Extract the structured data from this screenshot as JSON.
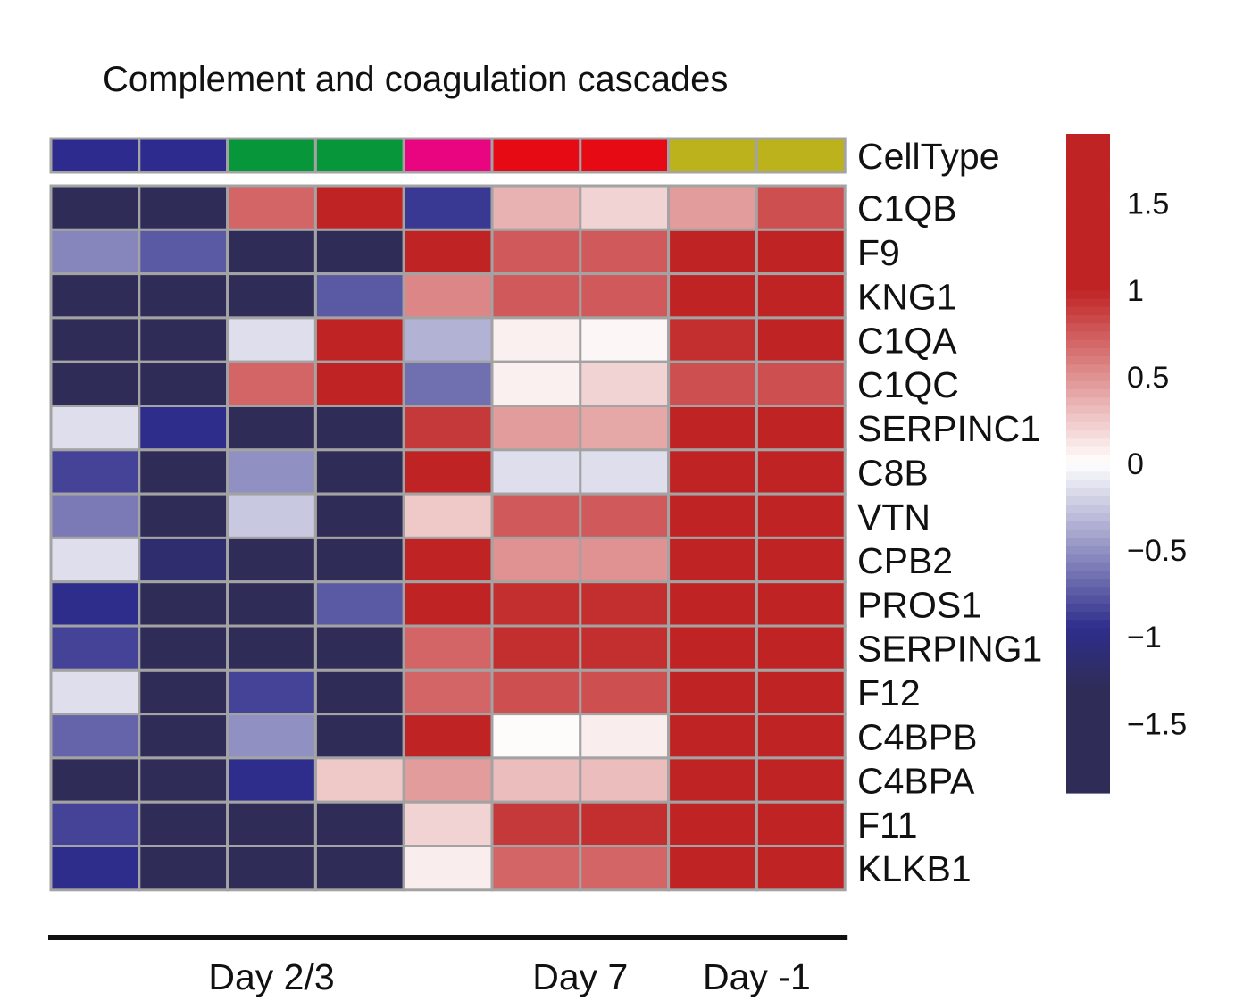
{
  "chart_data": {
    "type": "heatmap",
    "title": "Complement and coagulation cascades",
    "annotation": {
      "name": "CellType",
      "colors": [
        "#2d2b8d",
        "#2d2b8d",
        "#08963b",
        "#08963b",
        "#e8057f",
        "#e50a14",
        "#e50a14",
        "#bbb21c",
        "#bbb21c"
      ]
    },
    "rows": [
      "C1QB",
      "F9",
      "KNG1",
      "C1QA",
      "C1QC",
      "SERPINC1",
      "C8B",
      "VTN",
      "CPB2",
      "PROS1",
      "SERPING1",
      "F12",
      "C4BPB",
      "C4BPA",
      "F11",
      "KLKB1"
    ],
    "values": [
      [
        -1.6,
        -1.6,
        0.7,
        1.6,
        -0.9,
        0.35,
        0.2,
        0.45,
        0.8
      ],
      [
        -0.55,
        -0.75,
        -1.6,
        -1.6,
        1.05,
        0.75,
        0.75,
        1.6,
        1.6
      ],
      [
        -1.3,
        -1.6,
        -1.6,
        -0.75,
        0.55,
        0.75,
        0.75,
        1.6,
        1.6
      ],
      [
        -1.6,
        -1.6,
        -0.15,
        1.6,
        -0.35,
        0.07,
        0.04,
        0.95,
        1.1
      ],
      [
        -1.6,
        -1.6,
        0.7,
        1.6,
        -0.65,
        0.07,
        0.2,
        0.8,
        0.8
      ],
      [
        -0.15,
        -0.95,
        -1.6,
        -1.6,
        0.9,
        0.45,
        0.4,
        1.6,
        1.6
      ],
      [
        -0.85,
        -1.6,
        -0.5,
        -1.6,
        1.05,
        -0.15,
        -0.15,
        1.6,
        1.6
      ],
      [
        -0.6,
        -1.6,
        -0.25,
        -1.6,
        0.25,
        0.75,
        0.75,
        1.6,
        1.6
      ],
      [
        -0.15,
        -1.15,
        -1.6,
        -1.6,
        1.05,
        0.5,
        0.5,
        1.6,
        1.6
      ],
      [
        -0.95,
        -1.6,
        -1.6,
        -0.75,
        1.25,
        0.95,
        0.95,
        1.6,
        1.6
      ],
      [
        -0.85,
        -1.6,
        -1.6,
        -1.6,
        0.7,
        0.95,
        0.95,
        1.6,
        1.6
      ],
      [
        -0.15,
        -1.6,
        -0.85,
        -1.6,
        0.7,
        0.8,
        0.8,
        1.6,
        1.6
      ],
      [
        -0.7,
        -1.6,
        -0.5,
        -1.3,
        1.25,
        0.02,
        0.08,
        1.6,
        1.6
      ],
      [
        -1.6,
        -1.6,
        -0.95,
        0.25,
        0.45,
        0.3,
        0.3,
        1.6,
        1.6
      ],
      [
        -0.85,
        -1.6,
        -1.6,
        -1.6,
        0.2,
        0.9,
        0.95,
        1.6,
        1.6
      ],
      [
        -0.95,
        -1.3,
        -1.6,
        -1.6,
        0.08,
        0.7,
        0.7,
        1.6,
        1.6
      ]
    ],
    "color_scale": {
      "min": -1.9,
      "max": 1.9,
      "low": "#2f2d57",
      "mid_low": "#2e2d8c",
      "mid": "#ffffff",
      "high": "#c02324",
      "ticks": [
        {
          "value": 1.5,
          "label": "1.5"
        },
        {
          "value": 1,
          "label": "1"
        },
        {
          "value": 0.5,
          "label": "0.5"
        },
        {
          "value": 0,
          "label": "0"
        },
        {
          "value": -0.5,
          "label": "−0.5"
        },
        {
          "value": -1,
          "label": "−1"
        },
        {
          "value": -1.5,
          "label": "−1.5"
        }
      ]
    },
    "groups": [
      {
        "label": "Day 2/3",
        "columns": [
          0,
          4
        ]
      },
      {
        "label": "Day 7",
        "columns": [
          5,
          6
        ]
      },
      {
        "label": "Day -1",
        "columns": [
          7,
          8
        ]
      }
    ],
    "grid_color": "#a3a3a3"
  }
}
